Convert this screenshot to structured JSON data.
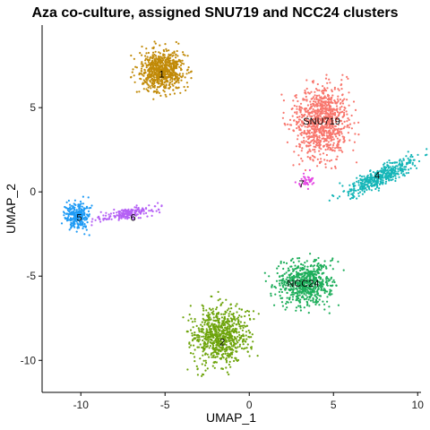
{
  "chart_data": {
    "type": "scatter",
    "title": "Aza co-culture, assigned SNU719 and NCC24 clusters",
    "xlabel": "UMAP_1",
    "ylabel": "UMAP_2",
    "xlim": [
      -12.3,
      10.2
    ],
    "ylim": [
      -11.9,
      9.9
    ],
    "xticks": [
      -10,
      -5,
      0,
      5,
      10
    ],
    "yticks": [
      5,
      0,
      -5,
      -10
    ],
    "grid": false,
    "legend": "none",
    "clusters": [
      {
        "label": "1",
        "color": "#C18A08",
        "cx": -5.2,
        "cy": 7.2,
        "sx": 1.15,
        "sy": 1.1,
        "rot": 0.0,
        "n": 700,
        "label_x": -5.2,
        "label_y": 7.0
      },
      {
        "label": "SNU719",
        "color": "#F8766D",
        "cx": 4.3,
        "cy": 4.2,
        "sx": 1.5,
        "sy": 2.0,
        "rot": 0.0,
        "n": 900,
        "label_x": 4.3,
        "label_y": 4.2
      },
      {
        "label": "4",
        "color": "#16B6B8",
        "cx": 7.8,
        "cy": 0.9,
        "sx": 2.1,
        "sy": 0.45,
        "rot": 0.45,
        "n": 450,
        "label_x": 7.6,
        "label_y": 1.0
      },
      {
        "label": "7",
        "color": "#E44AE3",
        "cx": 3.4,
        "cy": 0.6,
        "sx": 0.45,
        "sy": 0.45,
        "rot": 0.0,
        "n": 40,
        "label_x": 3.1,
        "label_y": 0.5
      },
      {
        "label": "5",
        "color": "#1F9BF5",
        "cx": -10.2,
        "cy": -1.4,
        "sx": 0.65,
        "sy": 0.75,
        "rot": 0.0,
        "n": 260,
        "label_x": -10.1,
        "label_y": -1.5
      },
      {
        "label": "6",
        "color": "#B561F5",
        "cx": -7.3,
        "cy": -1.3,
        "sx": 1.7,
        "sy": 0.28,
        "rot": 0.18,
        "n": 200,
        "label_x": -6.9,
        "label_y": -1.5
      },
      {
        "label": "NCC24",
        "color": "#1EAE5B",
        "cx": 3.3,
        "cy": -5.4,
        "sx": 1.5,
        "sy": 1.15,
        "rot": 0.0,
        "n": 650,
        "label_x": 3.2,
        "label_y": -5.4
      },
      {
        "label": "2",
        "color": "#6EA40C",
        "cx": -1.7,
        "cy": -8.5,
        "sx": 1.45,
        "sy": 1.6,
        "rot": 0.0,
        "n": 750,
        "label_x": -1.6,
        "label_y": -8.9
      }
    ]
  }
}
